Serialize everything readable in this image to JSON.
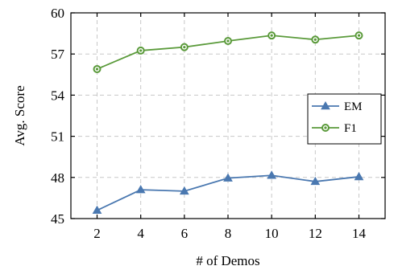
{
  "chart_data": {
    "type": "line",
    "xlabel": "# of Demos",
    "ylabel": "Avg. Score",
    "x": [
      2,
      4,
      6,
      8,
      10,
      12,
      14
    ],
    "xticks": [
      "2",
      "4",
      "6",
      "8",
      "10",
      "12",
      "14"
    ],
    "xlim": [
      0.8,
      15.2
    ],
    "ylim": [
      45,
      60
    ],
    "yticks": [
      "45",
      "48",
      "51",
      "54",
      "57",
      "60"
    ],
    "grid": true,
    "legend_position": "right",
    "series": [
      {
        "name": "EM",
        "values": [
          45.6,
          47.1,
          47.0,
          47.95,
          48.15,
          47.7,
          48.05
        ],
        "color": "#4a78b0",
        "marker": "triangle"
      },
      {
        "name": "F1",
        "values": [
          55.9,
          57.25,
          57.5,
          57.95,
          58.35,
          58.05,
          58.35
        ],
        "color": "#5a9a3a",
        "marker": "circle"
      }
    ]
  }
}
